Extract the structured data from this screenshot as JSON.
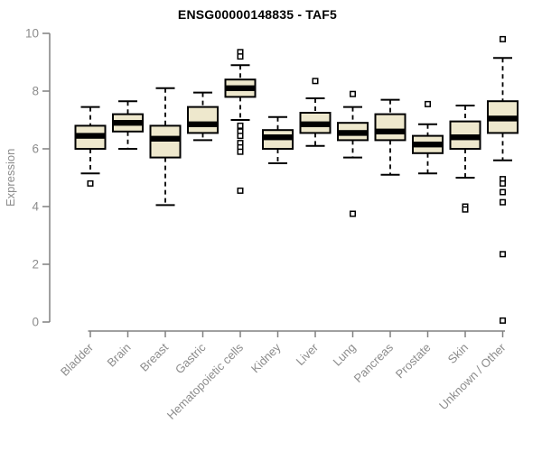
{
  "chart_data": {
    "type": "box",
    "title": "ENSG00000148835 - TAF5",
    "ylabel": "Expression",
    "xlabel": "",
    "ylim": [
      0,
      10
    ],
    "yticks": [
      0,
      2,
      4,
      6,
      8,
      10
    ],
    "grid": false,
    "legend": "none",
    "colors": {
      "box_fill": "#EEE8CD",
      "box_border": "#000000",
      "axis_line": "#808080",
      "axis_text": "#8c8c8c",
      "title_text": "#000000"
    },
    "categories": [
      "Bladder",
      "Brain",
      "Breast",
      "Gastric",
      "Hematopoietic cells",
      "Kidney",
      "Liver",
      "Lung",
      "Pancreas",
      "Prostate",
      "Skin",
      "Unknown / Other"
    ],
    "boxes": [
      {
        "label": "Bladder",
        "low": 5.15,
        "q1": 6.0,
        "median": 6.45,
        "q3": 6.8,
        "high": 7.45,
        "outliers": [
          4.8
        ]
      },
      {
        "label": "Brain",
        "low": 6.0,
        "q1": 6.6,
        "median": 6.9,
        "q3": 7.2,
        "high": 7.65,
        "outliers": []
      },
      {
        "label": "Breast",
        "low": 4.05,
        "q1": 5.7,
        "median": 6.35,
        "q3": 6.8,
        "high": 8.1,
        "outliers": []
      },
      {
        "label": "Gastric",
        "low": 6.3,
        "q1": 6.55,
        "median": 6.85,
        "q3": 7.45,
        "high": 7.95,
        "outliers": []
      },
      {
        "label": "Hematopoietic cells",
        "low": 7.0,
        "q1": 7.8,
        "median": 8.1,
        "q3": 8.4,
        "high": 8.9,
        "outliers": [
          9.35,
          9.2,
          6.8,
          6.6,
          6.45,
          6.2,
          6.05,
          5.9,
          4.55
        ]
      },
      {
        "label": "Kidney",
        "low": 5.5,
        "q1": 6.0,
        "median": 6.4,
        "q3": 6.65,
        "high": 7.1,
        "outliers": []
      },
      {
        "label": "Liver",
        "low": 6.1,
        "q1": 6.55,
        "median": 6.85,
        "q3": 7.25,
        "high": 7.75,
        "outliers": [
          8.35
        ]
      },
      {
        "label": "Lung",
        "low": 5.7,
        "q1": 6.3,
        "median": 6.55,
        "q3": 6.9,
        "high": 7.45,
        "outliers": [
          7.9,
          3.75
        ]
      },
      {
        "label": "Pancreas",
        "low": 5.1,
        "q1": 6.3,
        "median": 6.6,
        "q3": 7.2,
        "high": 7.7,
        "outliers": []
      },
      {
        "label": "Prostate",
        "low": 5.15,
        "q1": 5.85,
        "median": 6.15,
        "q3": 6.45,
        "high": 6.85,
        "outliers": [
          7.55
        ]
      },
      {
        "label": "Skin",
        "low": 5.0,
        "q1": 6.0,
        "median": 6.4,
        "q3": 6.95,
        "high": 7.5,
        "outliers": [
          4.0,
          3.9
        ]
      },
      {
        "label": "Unknown / Other",
        "low": 5.6,
        "q1": 6.55,
        "median": 7.05,
        "q3": 7.65,
        "high": 9.15,
        "outliers": [
          9.8,
          4.95,
          4.8,
          4.5,
          4.15,
          2.35,
          0.05
        ]
      }
    ]
  }
}
